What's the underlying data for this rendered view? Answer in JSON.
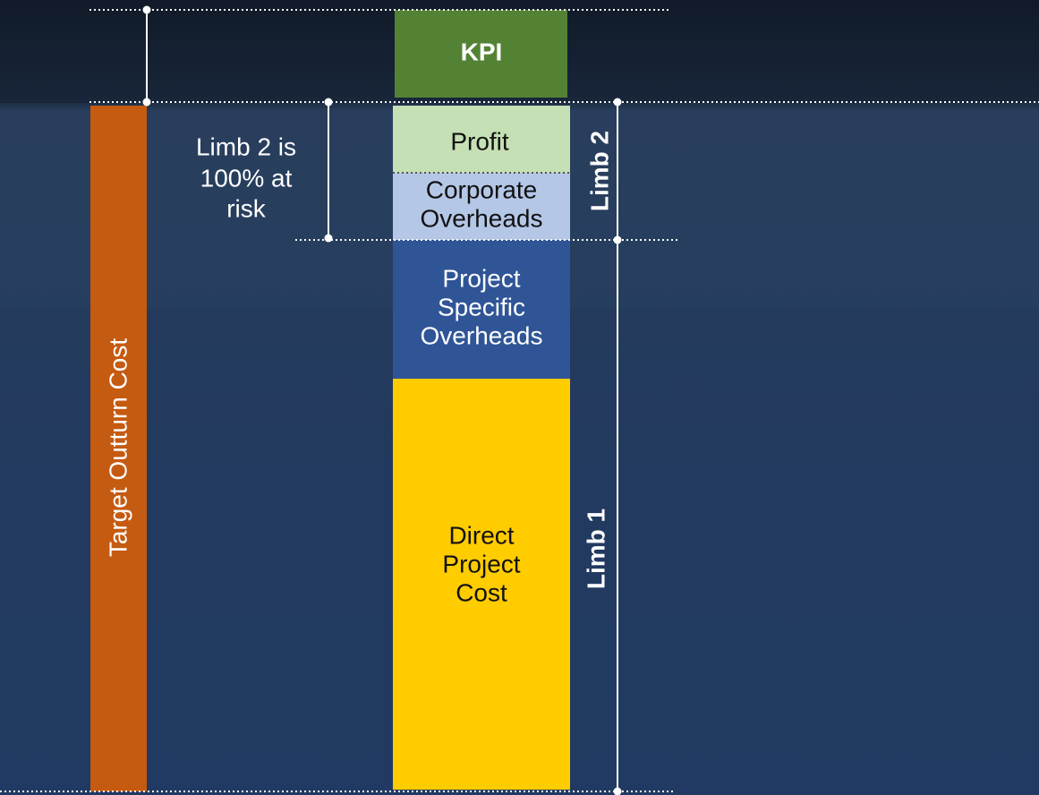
{
  "blocks": [
    {
      "lines": [
        "KPI"
      ]
    },
    {
      "lines": [
        "Profit"
      ]
    },
    {
      "lines": [
        "Corporate",
        "Overheads"
      ]
    },
    {
      "lines": [
        "Project",
        "Specific",
        "Overheads"
      ]
    },
    {
      "lines": [
        "Direct",
        "Project",
        "Cost"
      ]
    }
  ],
  "side_bar": {
    "label": "Target Outturn Cost"
  },
  "annotation": {
    "lines": [
      "Limb 2 is",
      "100% at",
      "risk"
    ]
  },
  "limbs": [
    {
      "label": "Limb 2"
    },
    {
      "label": "Limb 1"
    }
  ]
}
